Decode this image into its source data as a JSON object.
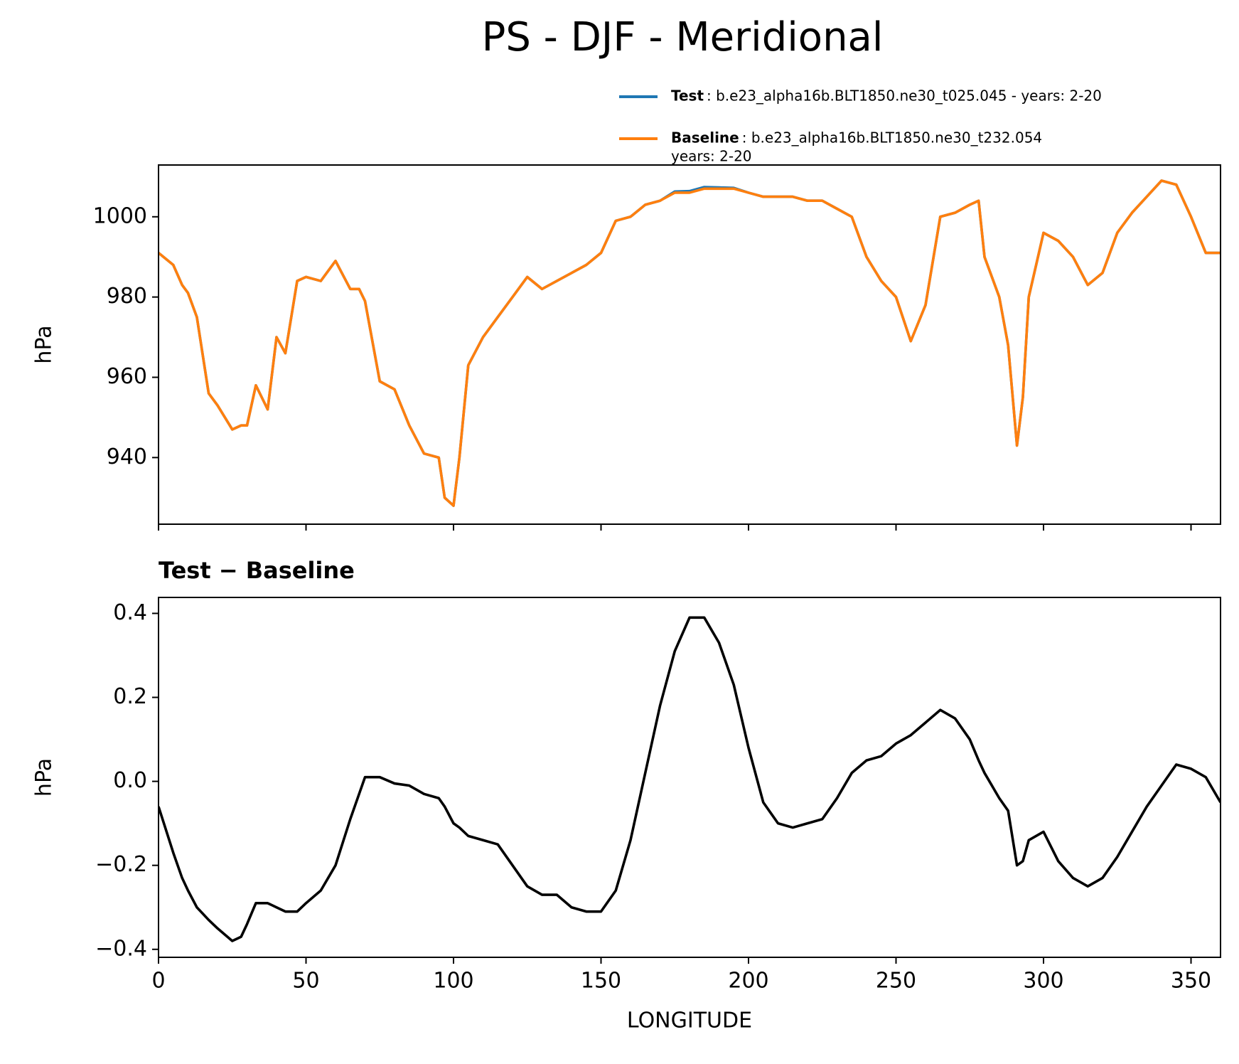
{
  "title": "PS - DJF - Meridional",
  "chart_data": [
    {
      "type": "line",
      "ylabel": "hPa",
      "x": [
        0,
        5,
        8,
        10,
        13,
        17,
        20,
        25,
        28,
        30,
        33,
        37,
        40,
        43,
        47,
        50,
        55,
        60,
        65,
        68,
        70,
        75,
        80,
        85,
        90,
        95,
        97,
        100,
        102,
        105,
        110,
        115,
        120,
        125,
        130,
        135,
        140,
        145,
        150,
        155,
        160,
        165,
        170,
        175,
        180,
        185,
        190,
        195,
        200,
        205,
        210,
        215,
        220,
        225,
        230,
        235,
        240,
        245,
        250,
        255,
        260,
        265,
        270,
        275,
        278,
        280,
        285,
        288,
        291,
        293,
        295,
        300,
        305,
        310,
        315,
        320,
        325,
        330,
        335,
        340,
        345,
        350,
        355,
        360
      ],
      "series": [
        {
          "name": "Test",
          "description": [
            ": b.e23_alpha16b.BLT1850.ne30_t025.045 - years: 2-20"
          ],
          "color": "#1f77b4",
          "values": [
            991,
            988,
            983,
            981,
            975,
            956,
            953,
            947,
            948,
            948,
            958,
            952,
            970,
            966,
            984,
            985,
            984,
            989,
            982,
            982,
            979,
            959,
            957,
            948,
            941,
            940,
            930,
            928,
            940,
            963,
            970,
            975,
            980,
            985,
            982,
            984,
            986,
            988,
            991,
            999,
            1000,
            1003,
            1004,
            1006.3,
            1006.4,
            1007.4,
            1007.3,
            1007.2,
            1006,
            1005,
            1005,
            1005,
            1004,
            1004,
            1002,
            1000,
            990,
            984,
            980,
            969,
            978,
            1000,
            1001,
            1003,
            1004,
            990,
            980,
            968,
            943,
            955,
            980,
            996,
            994,
            990,
            983,
            986,
            996,
            1001,
            1005,
            1009,
            1008,
            1000,
            991,
            991
          ]
        },
        {
          "name": "Baseline",
          "description": [
            ": b.e23_alpha16b.BLT1850.ne30_t232.054",
            "years: 2-20"
          ],
          "color": "#ff7f0e",
          "values": [
            991,
            988,
            983,
            981,
            975,
            956,
            953,
            947,
            948,
            948,
            958,
            952,
            970,
            966,
            984,
            985,
            984,
            989,
            982,
            982,
            979,
            959,
            957,
            948,
            941,
            940,
            930,
            928,
            940,
            963,
            970,
            975,
            980,
            985,
            982,
            984,
            986,
            988,
            991,
            999,
            1000,
            1003,
            1004,
            1006,
            1006,
            1007,
            1007,
            1007,
            1006,
            1005,
            1005,
            1005,
            1004,
            1004,
            1002,
            1000,
            990,
            984,
            980,
            969,
            978,
            1000,
            1001,
            1003,
            1004,
            990,
            980,
            968,
            943,
            955,
            980,
            996,
            994,
            990,
            983,
            986,
            996,
            1001,
            1005,
            1009,
            1008,
            1000,
            991,
            991
          ]
        }
      ],
      "xlim": [
        0,
        360
      ],
      "xticks": [
        0,
        50,
        100,
        150,
        200,
        250,
        300,
        350
      ],
      "ylim": [
        923.4,
        1012.9
      ],
      "yticks": [
        940,
        960,
        980,
        1000
      ]
    },
    {
      "type": "line",
      "title": "Test − Baseline",
      "ylabel": "hPa",
      "xlabel": "LONGITUDE",
      "x": [
        0,
        5,
        8,
        10,
        13,
        17,
        20,
        25,
        28,
        30,
        33,
        37,
        40,
        43,
        47,
        50,
        55,
        60,
        65,
        68,
        70,
        75,
        80,
        85,
        90,
        95,
        97,
        100,
        102,
        105,
        110,
        115,
        120,
        125,
        130,
        135,
        140,
        145,
        150,
        155,
        160,
        165,
        170,
        175,
        180,
        185,
        190,
        195,
        200,
        205,
        210,
        215,
        220,
        225,
        230,
        235,
        240,
        245,
        250,
        255,
        260,
        265,
        270,
        275,
        278,
        280,
        285,
        288,
        291,
        293,
        295,
        300,
        305,
        310,
        315,
        320,
        325,
        330,
        335,
        340,
        345,
        350,
        355,
        360
      ],
      "series": [
        {
          "color": "#000000",
          "values": [
            -0.06,
            -0.17,
            -0.23,
            -0.26,
            -0.3,
            -0.33,
            -0.35,
            -0.38,
            -0.37,
            -0.34,
            -0.29,
            -0.29,
            -0.3,
            -0.31,
            -0.31,
            -0.29,
            -0.26,
            -0.2,
            -0.09,
            -0.03,
            0.01,
            0.01,
            -0.005,
            -0.01,
            -0.03,
            -0.04,
            -0.06,
            -0.1,
            -0.11,
            -0.13,
            -0.14,
            -0.15,
            -0.2,
            -0.25,
            -0.27,
            -0.27,
            -0.3,
            -0.31,
            -0.31,
            -0.26,
            -0.14,
            0.02,
            0.18,
            0.31,
            0.39,
            0.39,
            0.33,
            0.23,
            0.08,
            -0.05,
            -0.1,
            -0.11,
            -0.1,
            -0.09,
            -0.04,
            0.02,
            0.05,
            0.06,
            0.09,
            0.11,
            0.14,
            0.17,
            0.15,
            0.1,
            0.05,
            0.02,
            -0.04,
            -0.07,
            -0.2,
            -0.19,
            -0.14,
            -0.12,
            -0.19,
            -0.23,
            -0.25,
            -0.23,
            -0.18,
            -0.12,
            -0.06,
            -0.01,
            0.04,
            0.03,
            0.01,
            -0.05
          ]
        }
      ],
      "xlim": [
        0,
        360
      ],
      "xticks": [
        0,
        50,
        100,
        150,
        200,
        250,
        300,
        350
      ],
      "ylim": [
        -0.419,
        0.438
      ],
      "yticks": [
        {
          "value": -0.4,
          "label": "−0.4"
        },
        {
          "value": -0.2,
          "label": "−0.2"
        },
        {
          "value": 0.0,
          "label": "0.0"
        },
        0.2,
        0.4
      ]
    }
  ]
}
